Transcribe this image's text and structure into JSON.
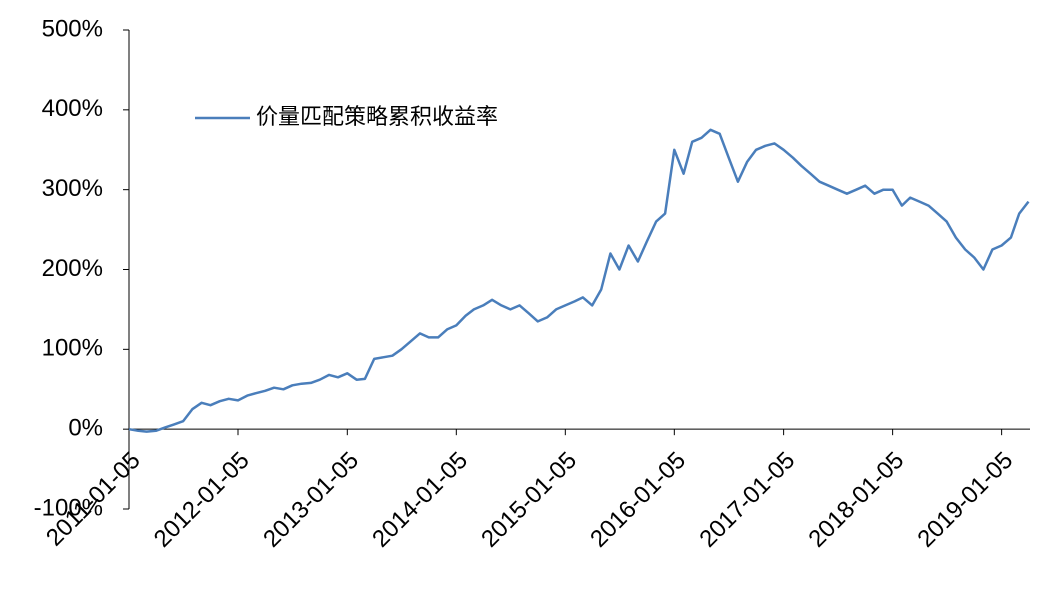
{
  "chart_data": {
    "type": "line",
    "x": [
      "2011-01-05",
      "2011-02-05",
      "2011-03-05",
      "2011-04-05",
      "2011-05-05",
      "2011-06-05",
      "2011-07-05",
      "2011-08-05",
      "2011-09-05",
      "2011-10-05",
      "2011-11-05",
      "2011-12-05",
      "2012-01-05",
      "2012-02-05",
      "2012-03-05",
      "2012-04-05",
      "2012-05-05",
      "2012-06-05",
      "2012-07-05",
      "2012-08-05",
      "2012-09-05",
      "2012-10-05",
      "2012-11-05",
      "2012-12-05",
      "2013-01-05",
      "2013-02-05",
      "2013-03-05",
      "2013-04-05",
      "2013-05-05",
      "2013-06-05",
      "2013-07-05",
      "2013-08-05",
      "2013-09-05",
      "2013-10-05",
      "2013-11-05",
      "2013-12-05",
      "2014-01-05",
      "2014-02-05",
      "2014-03-05",
      "2014-04-05",
      "2014-05-05",
      "2014-06-05",
      "2014-07-05",
      "2014-08-05",
      "2014-09-05",
      "2014-10-05",
      "2014-11-05",
      "2014-12-05",
      "2015-01-05",
      "2015-02-05",
      "2015-03-05",
      "2015-04-05",
      "2015-05-05",
      "2015-06-05",
      "2015-07-05",
      "2015-08-05",
      "2015-09-05",
      "2015-10-05",
      "2015-11-05",
      "2015-12-05",
      "2016-01-05",
      "2016-02-05",
      "2016-03-05",
      "2016-04-05",
      "2016-05-05",
      "2016-06-05",
      "2016-07-05",
      "2016-08-05",
      "2016-09-05",
      "2016-10-05",
      "2016-11-05",
      "2016-12-05",
      "2017-01-05",
      "2017-02-05",
      "2017-03-05",
      "2017-04-05",
      "2017-05-05",
      "2017-06-05",
      "2017-07-05",
      "2017-08-05",
      "2017-09-05",
      "2017-10-05",
      "2017-11-05",
      "2017-12-05",
      "2018-01-05",
      "2018-02-05",
      "2018-03-05",
      "2018-04-05",
      "2018-05-05",
      "2018-06-05",
      "2018-07-05",
      "2018-08-05",
      "2018-09-05",
      "2018-10-05",
      "2018-11-05",
      "2018-12-05",
      "2019-01-05",
      "2019-02-05",
      "2019-03-05",
      "2019-04-05"
    ],
    "series": [
      {
        "name": "价量匹配策略累积收益率",
        "color": "#4a7ebb",
        "values": [
          0,
          -2,
          -3,
          -2,
          2,
          6,
          10,
          25,
          33,
          30,
          35,
          38,
          36,
          42,
          45,
          48,
          52,
          50,
          55,
          57,
          58,
          62,
          68,
          65,
          70,
          62,
          63,
          88,
          90,
          92,
          100,
          110,
          120,
          115,
          115,
          125,
          130,
          142,
          150,
          155,
          162,
          155,
          150,
          155,
          145,
          135,
          140,
          150,
          155,
          160,
          165,
          155,
          175,
          220,
          200,
          230,
          210,
          235,
          260,
          270,
          350,
          320,
          360,
          365,
          375,
          370,
          340,
          310,
          335,
          350,
          355,
          358,
          350,
          340,
          330,
          320,
          310,
          305,
          300,
          295,
          300,
          305,
          295,
          300,
          300,
          280,
          290,
          285,
          280,
          270,
          260,
          240,
          225,
          215,
          200,
          225,
          230,
          240,
          270,
          285
        ]
      }
    ],
    "xlim": [
      "2011-01-05",
      "2019-04-10"
    ],
    "xticks": [
      "2011-01-05",
      "2012-01-05",
      "2013-01-05",
      "2014-01-05",
      "2015-01-05",
      "2016-01-05",
      "2017-01-05",
      "2018-01-05",
      "2019-01-05"
    ],
    "ylim": [
      -100,
      500
    ],
    "yticks": [
      {
        "value": -100,
        "label": "-100%"
      },
      {
        "value": 0,
        "label": "0%"
      },
      {
        "value": 100,
        "label": "100%"
      },
      {
        "value": 200,
        "label": "200%"
      },
      {
        "value": 300,
        "label": "300%"
      },
      {
        "value": 400,
        "label": "400%"
      },
      {
        "value": 500,
        "label": "500%"
      }
    ],
    "legend": "upper left"
  }
}
